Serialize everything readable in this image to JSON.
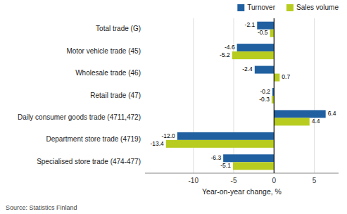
{
  "chart_data": {
    "type": "bar",
    "orientation": "horizontal",
    "categories": [
      "Total trade (G)",
      "Motor vehicle trade (45)",
      "Wholesale trade (46)",
      "Retail trade (47)",
      "Daily consumer goods trade (4711,472)",
      "Department store trade (4719)",
      "Specialised store trade (474-477)"
    ],
    "series": [
      {
        "name": "Turnover",
        "color": "#2060a0",
        "values": [
          -2.1,
          -4.6,
          -2.4,
          -0.2,
          6.4,
          -12.0,
          -6.3
        ],
        "value_labels": [
          "-2.1",
          "-4.6",
          "-2.4",
          "-0.2",
          "6.4",
          "-12.0",
          "-6.3"
        ]
      },
      {
        "name": "Sales volume",
        "color": "#b8cc20",
        "values": [
          -0.5,
          -5.2,
          0.7,
          -0.3,
          4.4,
          -13.4,
          -5.1
        ],
        "value_labels": [
          "-0.5",
          "-5.2",
          "0.7",
          "-0.3",
          "4.4",
          "-13.4",
          "-5.1"
        ]
      }
    ],
    "xlabel": "Year-on-year change, %",
    "xlim": [
      -16,
      8
    ],
    "xticks": [
      -10,
      -5,
      0,
      5
    ],
    "grid": true,
    "data_labels": true,
    "legend": "upper right",
    "source": "Source: Statistics Finland"
  }
}
